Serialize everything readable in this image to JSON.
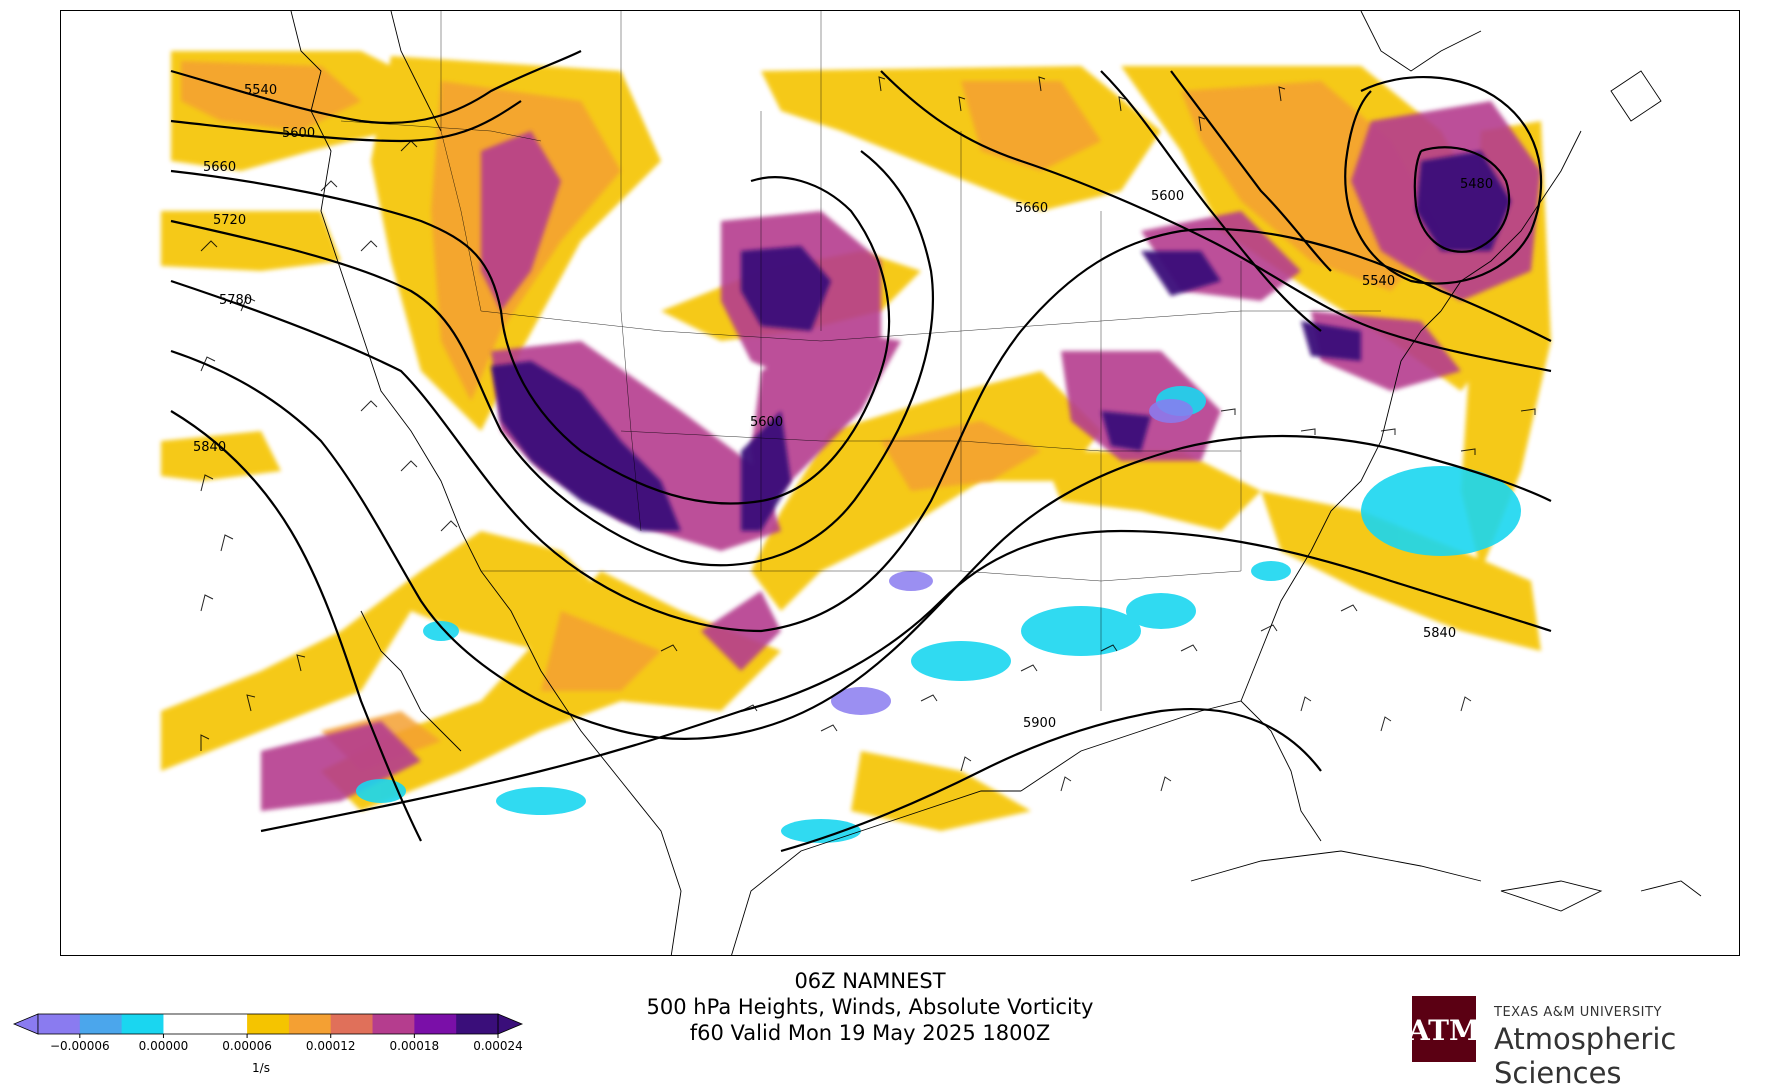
{
  "title": {
    "line1": "06Z NAMNEST",
    "line2": "500 hPa Heights, Winds, Absolute Vorticity",
    "line3": "f60 Valid Mon 19 May 2025 1800Z"
  },
  "colorbar": {
    "ticks": [
      "−0.00006",
      "0.00000",
      "0.00006",
      "0.00012",
      "0.00018",
      "0.00024"
    ],
    "unit_label": "1/s",
    "bins": [
      "#8a7bf0",
      "#4ba6ec",
      "#1ad6f0",
      "#ffffff",
      "#ffffff",
      "#f5c400",
      "#f4a033",
      "#e0705a",
      "#b53d8e",
      "#7a0fa8",
      "#3a0e7a"
    ],
    "extend": "both"
  },
  "contour_labels": [
    {
      "text": "5540",
      "id": "5540-nw"
    },
    {
      "text": "5600",
      "id": "5600-nw"
    },
    {
      "text": "5660",
      "id": "5660-nw"
    },
    {
      "text": "5720",
      "id": "5720-w"
    },
    {
      "text": "5780",
      "id": "5780-w"
    },
    {
      "text": "5840",
      "id": "5840-sw"
    },
    {
      "text": "5600",
      "id": "5600-center"
    },
    {
      "text": "5660",
      "id": "5660-north"
    },
    {
      "text": "5600",
      "id": "5600-ne"
    },
    {
      "text": "5480",
      "id": "5480-ne"
    },
    {
      "text": "5540",
      "id": "5540-ne"
    },
    {
      "text": "5840",
      "id": "5840-se"
    },
    {
      "text": "5900",
      "id": "5900-gulf"
    }
  ],
  "logo": {
    "university": "TEXAS A&M UNIVERSITY",
    "department": "Atmospheric Sciences",
    "mark": "ATM",
    "colors": {
      "maroon": "#5b0013"
    }
  },
  "colors": {
    "contour": "#000000",
    "coastline": "#000000",
    "vort_low": "#f5c400",
    "vort_mid": "#b53d8e",
    "vort_high": "#3a0e7a",
    "neg": "#1ad6f0"
  }
}
